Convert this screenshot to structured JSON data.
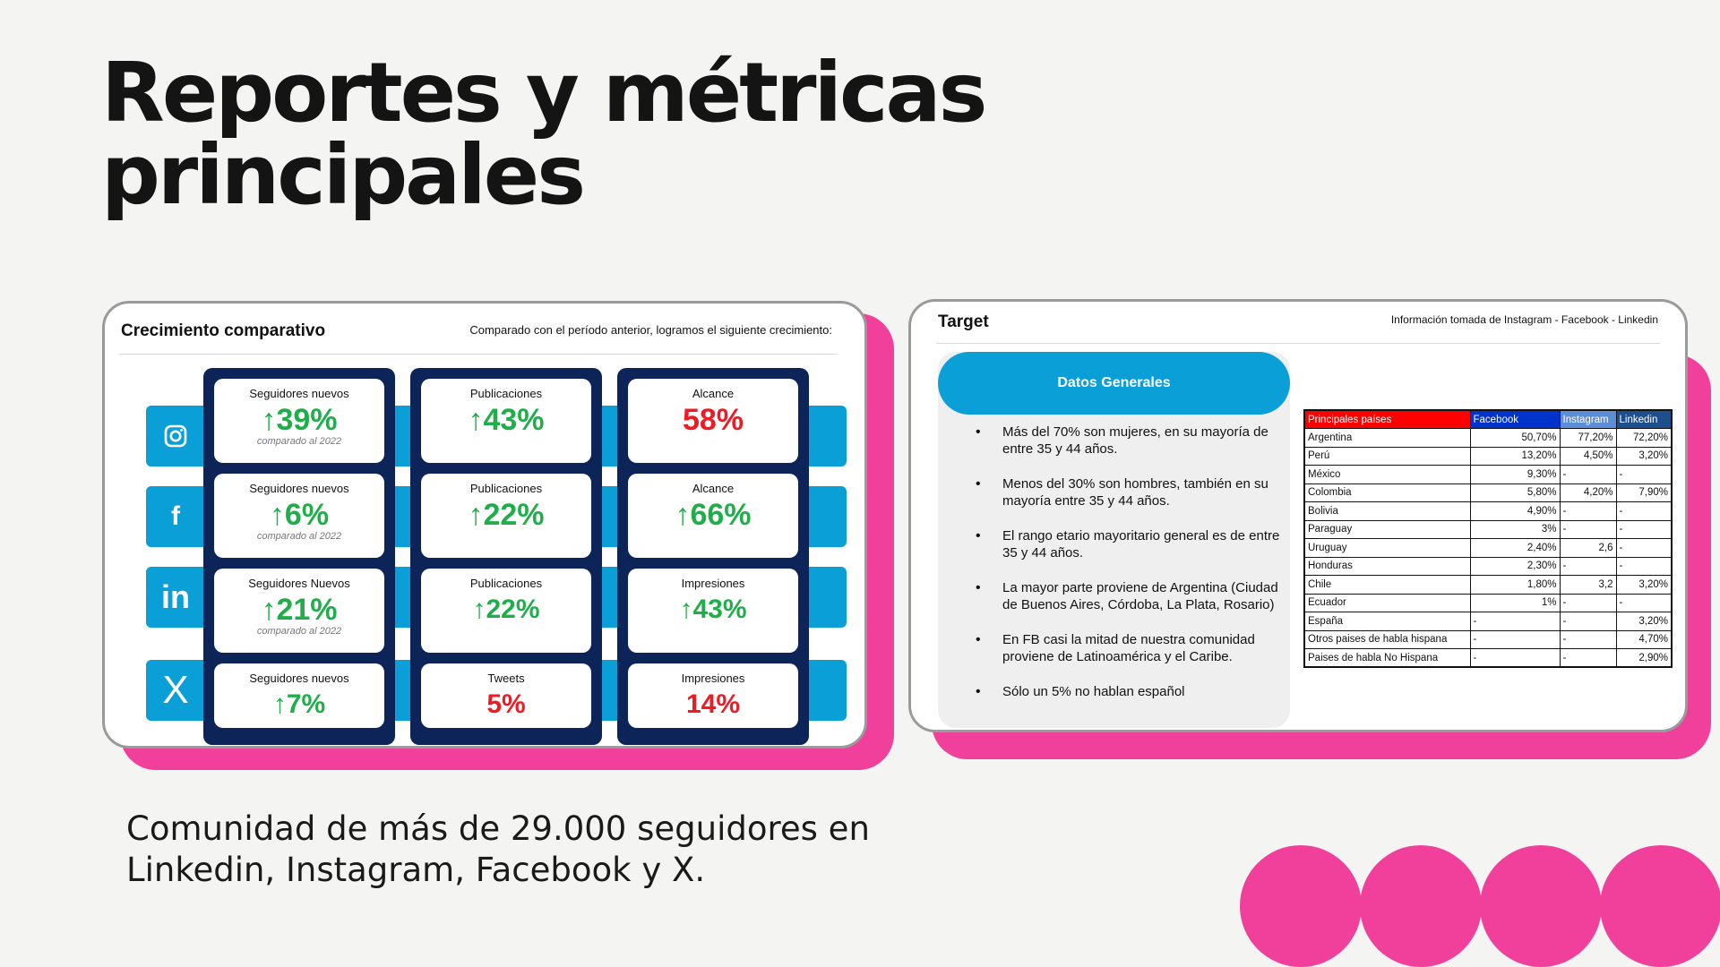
{
  "title": {
    "line1": "Reportes y métricas",
    "line2": "principales"
  },
  "community_text": {
    "line1": "Comunidad de más de 29.000 seguidores en",
    "line2": "Linkedin, Instagram, Facebook y X."
  },
  "growth_card": {
    "title": "Crecimiento comparativo",
    "subtitle": "Comparado con el período anterior, logramos el siguiente crecimiento:",
    "rows": [
      {
        "network": "instagram",
        "icon": "instagram-icon",
        "followers": {
          "label": "Seguidores nuevos",
          "value": "↑39%",
          "note": "comparado al 2022"
        },
        "posts": {
          "label": "Publicaciones",
          "value": "↑43%"
        },
        "reach": {
          "label": "Alcance",
          "value": "58%"
        }
      },
      {
        "network": "facebook",
        "icon": "facebook-icon",
        "glyph": "f",
        "followers": {
          "label": "Seguidores nuevos",
          "value": "↑6%",
          "note": "comparado al 2022"
        },
        "posts": {
          "label": "Publicaciones",
          "value": "↑22%"
        },
        "reach": {
          "label": "Alcance",
          "value": "↑66%"
        }
      },
      {
        "network": "linkedin",
        "icon": "linkedin-icon",
        "glyph": "in",
        "followers": {
          "label": "Seguidores Nuevos",
          "value": "↑21%",
          "note": "comparado al 2022"
        },
        "posts": {
          "label": "Publicaciones",
          "value": "↑22%"
        },
        "reach": {
          "label": "Impresiones",
          "value": "↑43%"
        }
      },
      {
        "network": "x",
        "icon": "x-icon",
        "glyph": "X",
        "followers": {
          "label": "Seguidores nuevos",
          "value": "↑7%"
        },
        "posts": {
          "label": "Tweets",
          "value": "5%"
        },
        "reach": {
          "label": "Impresiones",
          "value": "14%"
        }
      }
    ]
  },
  "target_card": {
    "title": "Target",
    "subtitle": "Información tomada de Instagram - Facebook - Linkedin",
    "panel_title": "Datos Generales",
    "bullets": [
      "Más del 70% son mujeres, en su mayoría de entre 35 y 44 años.",
      "Menos del 30% son hombres, también en su mayoría entre 35 y 44 años.",
      "El rango etario mayoritario general es de entre 35 y 44 años.",
      "La mayor parte proviene de Argentina (Ciudad de Buenos Aires, Córdoba, La Plata, Rosario)",
      "En FB casi la mitad de nuestra comunidad proviene de Latinoamérica y el Caribe.",
      "Sólo un 5% no hablan español"
    ],
    "table": {
      "headers": [
        "Principales países",
        "Facebook",
        "Instagram",
        "Linkedin"
      ],
      "header_colors": [
        "#ff0000",
        "#0033cc",
        "#5b8ed6",
        "#1f4e8c"
      ],
      "rows": [
        [
          "Argentina",
          "50,70%",
          "77,20%",
          "72,20%"
        ],
        [
          "Perú",
          "13,20%",
          "4,50%",
          "3,20%"
        ],
        [
          "México",
          "9,30%",
          "-",
          "-"
        ],
        [
          "Colombia",
          "5,80%",
          "4,20%",
          "7,90%"
        ],
        [
          "Bolivia",
          "4,90%",
          "-",
          "-"
        ],
        [
          "Paraguay",
          "3%",
          "-",
          "-"
        ],
        [
          "Uruguay",
          "2,40%",
          "2,6",
          "-"
        ],
        [
          "Honduras",
          "2,30%",
          "-",
          "-"
        ],
        [
          "Chile",
          "1,80%",
          "3,2",
          "3,20%"
        ],
        [
          "Ecuador",
          "1%",
          "-",
          "-"
        ],
        [
          "España",
          "-",
          "-",
          "3,20%"
        ],
        [
          "Otros paises de habla hispana",
          "-",
          "-",
          "4,70%"
        ],
        [
          "Paises de habla No Hispana",
          "-",
          "-",
          "2,90%"
        ]
      ]
    }
  },
  "colors": {
    "accent_pink": "#f0409c",
    "accent_blue": "#0b9fd8",
    "navy": "#0d2459",
    "up_green": "#1fae4a",
    "red": "#ee1b24"
  }
}
